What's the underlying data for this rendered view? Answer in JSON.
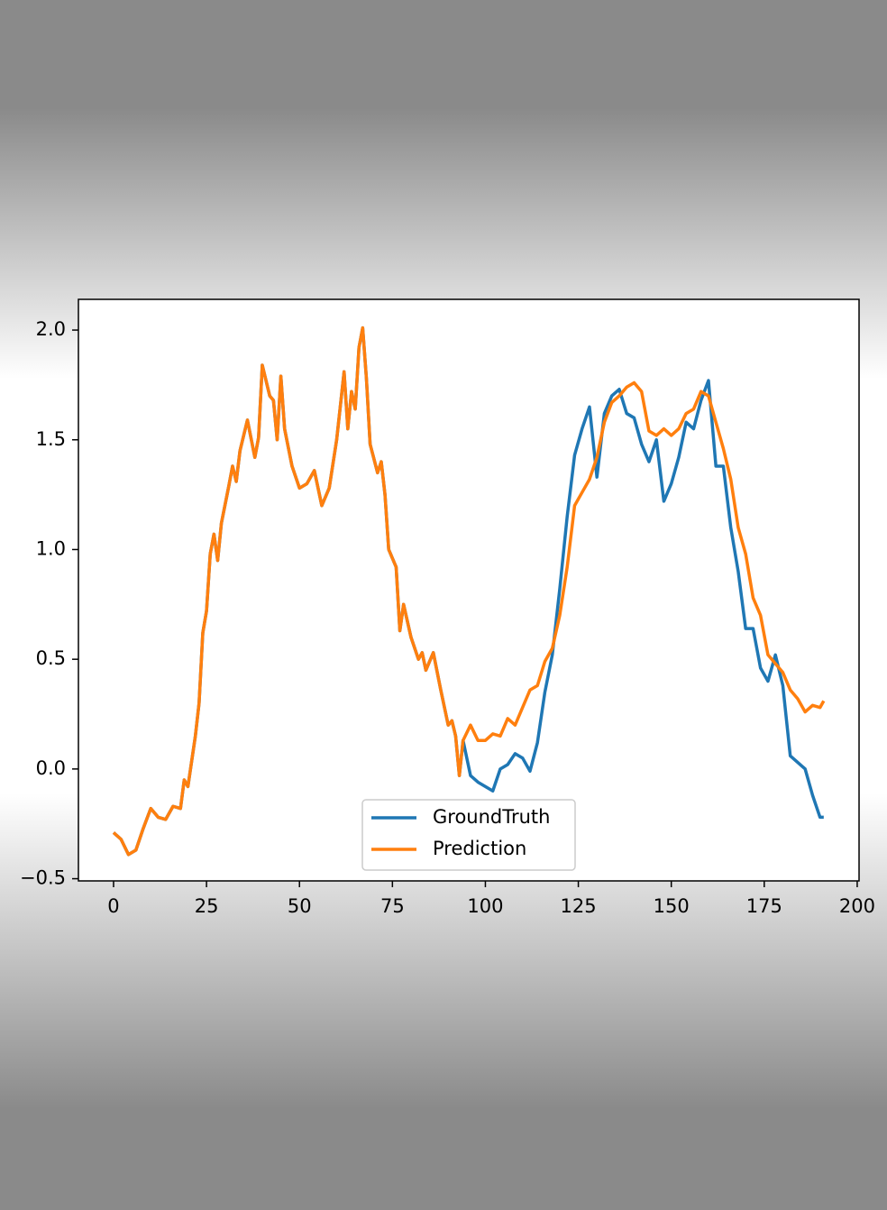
{
  "chart_data": {
    "type": "line",
    "x": [
      0,
      2,
      4,
      6,
      8,
      10,
      12,
      14,
      16,
      18,
      19,
      20,
      22,
      23,
      24,
      25,
      26,
      27,
      28,
      29,
      31,
      32,
      33,
      34,
      36,
      38,
      39,
      40,
      42,
      43,
      44,
      45,
      46,
      48,
      50,
      52,
      54,
      56,
      58,
      60,
      62,
      63,
      64,
      65,
      66,
      67,
      68,
      69,
      71,
      72,
      73,
      74,
      76,
      77,
      78,
      80,
      82,
      83,
      84,
      86,
      88,
      90,
      91,
      92,
      93,
      94,
      96,
      98,
      100,
      102,
      104,
      106,
      108,
      110,
      112,
      114,
      116,
      118,
      120,
      122,
      124,
      126,
      128,
      130,
      132,
      134,
      136,
      138,
      140,
      142,
      144,
      146,
      148,
      150,
      152,
      154,
      156,
      158,
      160,
      162,
      164,
      166,
      168,
      170,
      172,
      174,
      176,
      178,
      180,
      182,
      184,
      186,
      188,
      190,
      191
    ],
    "series": [
      {
        "name": "GroundTruth",
        "color": "#1f77b4",
        "values": [
          -0.29,
          -0.32,
          -0.39,
          -0.37,
          -0.27,
          -0.18,
          -0.22,
          -0.23,
          -0.17,
          -0.18,
          -0.05,
          -0.08,
          0.15,
          0.3,
          0.62,
          0.72,
          0.98,
          1.07,
          0.95,
          1.12,
          1.29,
          1.38,
          1.31,
          1.45,
          1.59,
          1.42,
          1.51,
          1.84,
          1.7,
          1.68,
          1.5,
          1.79,
          1.55,
          1.38,
          1.28,
          1.3,
          1.36,
          1.2,
          1.28,
          1.5,
          1.81,
          1.55,
          1.72,
          1.64,
          1.92,
          2.01,
          1.78,
          1.48,
          1.35,
          1.4,
          1.25,
          1.0,
          0.92,
          0.63,
          0.75,
          0.6,
          0.5,
          0.53,
          0.45,
          0.53,
          0.36,
          0.2,
          0.22,
          0.15,
          -0.03,
          0.13,
          -0.03,
          -0.06,
          -0.08,
          -0.1,
          0.0,
          0.02,
          0.07,
          0.05,
          -0.01,
          0.12,
          0.35,
          0.52,
          0.82,
          1.15,
          1.43,
          1.55,
          1.65,
          1.33,
          1.62,
          1.7,
          1.73,
          1.62,
          1.6,
          1.48,
          1.4,
          1.5,
          1.22,
          1.3,
          1.42,
          1.58,
          1.55,
          1.68,
          1.77,
          1.38,
          1.38,
          1.1,
          0.9,
          0.64,
          0.64,
          0.46,
          0.4,
          0.52,
          0.38,
          0.06,
          0.03,
          0.0,
          -0.12,
          -0.22,
          -0.22
        ]
      },
      {
        "name": "Prediction",
        "color": "#ff7f0e",
        "values": [
          -0.29,
          -0.32,
          -0.39,
          -0.37,
          -0.27,
          -0.18,
          -0.22,
          -0.23,
          -0.17,
          -0.18,
          -0.05,
          -0.08,
          0.15,
          0.3,
          0.62,
          0.72,
          0.98,
          1.07,
          0.95,
          1.12,
          1.29,
          1.38,
          1.31,
          1.45,
          1.59,
          1.42,
          1.51,
          1.84,
          1.7,
          1.68,
          1.5,
          1.79,
          1.55,
          1.38,
          1.28,
          1.3,
          1.36,
          1.2,
          1.28,
          1.5,
          1.81,
          1.55,
          1.72,
          1.64,
          1.92,
          2.01,
          1.78,
          1.48,
          1.35,
          1.4,
          1.25,
          1.0,
          0.92,
          0.63,
          0.75,
          0.6,
          0.5,
          0.53,
          0.45,
          0.53,
          0.36,
          0.2,
          0.22,
          0.15,
          -0.03,
          0.13,
          0.2,
          0.13,
          0.13,
          0.16,
          0.15,
          0.23,
          0.2,
          0.28,
          0.36,
          0.38,
          0.49,
          0.55,
          0.7,
          0.92,
          1.2,
          1.26,
          1.32,
          1.42,
          1.58,
          1.67,
          1.7,
          1.74,
          1.76,
          1.72,
          1.54,
          1.52,
          1.55,
          1.52,
          1.55,
          1.62,
          1.64,
          1.72,
          1.7,
          1.58,
          1.46,
          1.32,
          1.1,
          0.98,
          0.78,
          0.7,
          0.52,
          0.48,
          0.44,
          0.36,
          0.32,
          0.26,
          0.29,
          0.28,
          0.31
        ]
      }
    ],
    "xlim": [
      -9.45,
      200.5
    ],
    "ylim": [
      -0.51,
      2.14
    ],
    "xticks": [
      0,
      25,
      50,
      75,
      100,
      125,
      150,
      175,
      200
    ],
    "yticks": [
      {
        "value": -0.5,
        "label": "−0.5"
      },
      {
        "value": 0,
        "label": "0.0"
      },
      {
        "value": 0.5,
        "label": "0.5"
      },
      {
        "value": 1,
        "label": "1.0"
      },
      {
        "value": 1.5,
        "label": "1.5"
      },
      {
        "value": 2,
        "label": "2.0"
      }
    ],
    "legend": "lower center"
  }
}
